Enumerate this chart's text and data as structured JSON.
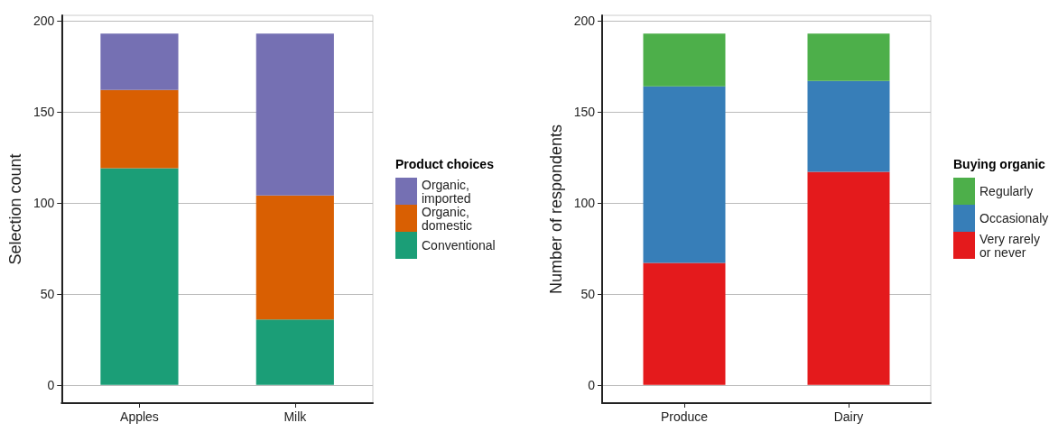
{
  "chart_data": [
    {
      "type": "bar",
      "stacked": true,
      "categories": [
        "Apples",
        "Milk"
      ],
      "ylabel": "Selection count",
      "legend_title": "Product choices",
      "legend": "right",
      "grid": true,
      "ylim": [
        -10,
        203
      ],
      "yticks": [
        0,
        50,
        100,
        150,
        200
      ],
      "series": [
        {
          "name": "Conventional",
          "color": "#1b9e77",
          "values": [
            119,
            36
          ]
        },
        {
          "name": "Organic, domestic",
          "color": "#d95f02",
          "values": [
            43,
            68
          ]
        },
        {
          "name": "Organic, imported",
          "color": "#7570b3",
          "values": [
            31,
            89
          ]
        }
      ]
    },
    {
      "type": "bar",
      "stacked": true,
      "categories": [
        "Produce",
        "Dairy"
      ],
      "ylabel": "Number of respondents",
      "legend_title": "Buying organic",
      "legend": "right",
      "grid": true,
      "ylim": [
        -10,
        203
      ],
      "yticks": [
        0,
        50,
        100,
        150,
        200
      ],
      "series": [
        {
          "name": "Very rarely or never",
          "color": "#e41a1c",
          "values": [
            67,
            117
          ]
        },
        {
          "name": "Occasionaly",
          "color": "#377eb8",
          "values": [
            97,
            50
          ]
        },
        {
          "name": "Regularly",
          "color": "#4daf4a",
          "values": [
            29,
            26
          ]
        }
      ]
    }
  ]
}
